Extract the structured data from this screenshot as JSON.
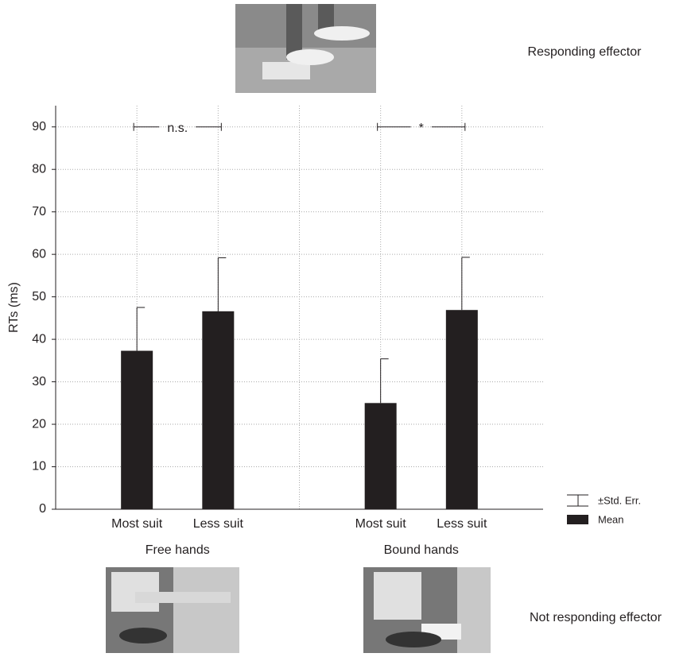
{
  "chart_data": {
    "type": "bar",
    "y_label": "RTs (ms)",
    "groups": [
      "Free hands",
      "Bound hands"
    ],
    "categories": [
      "Most suit",
      "Less suit",
      "Most suit",
      "Less suit"
    ],
    "series": [
      {
        "name": "Mean",
        "color": "#231f20",
        "values": [
          37.3,
          46.6,
          25,
          46.9
        ],
        "errors": [
          10.2,
          12.6,
          10.4,
          12.4
        ]
      }
    ],
    "error_label": "±Std. Err.",
    "annotations": [
      {
        "text": "n.s.",
        "y": 90
      },
      {
        "text": "*",
        "y": 90
      }
    ],
    "top_caption": "Responding effector",
    "bottom_caption": "Not responding effector",
    "ylim": [
      0,
      95
    ],
    "yticks": [
      0,
      10,
      20,
      30,
      40,
      50,
      60,
      70,
      80,
      90
    ],
    "grid": true
  }
}
